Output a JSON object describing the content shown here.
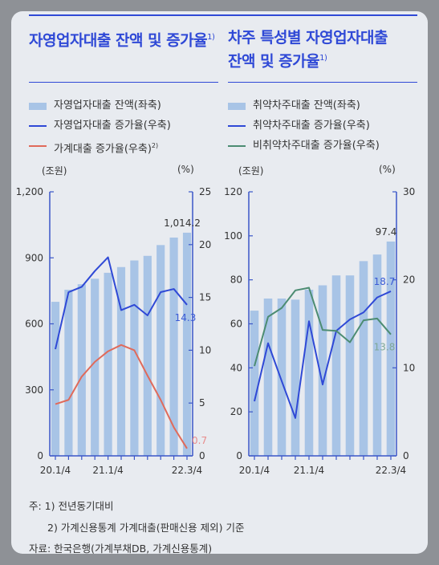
{
  "titles": {
    "left": "자영업자대출 잔액 및 증가율",
    "left_sup": "1)",
    "right_line1": "차주 특성별 자영업자대출",
    "right_line2": "잔액 및 증가율",
    "right_sup": "1)"
  },
  "legend_left": [
    {
      "label": "자영업자대출 잔액(좌축)",
      "kind": "bar",
      "sup": ""
    },
    {
      "label": "자영업자대출 증가율(우축)",
      "kind": "line",
      "sup": ""
    },
    {
      "label": "가계대출 증가율(우축)",
      "kind": "line",
      "sup": "2)"
    }
  ],
  "legend_right": [
    {
      "label": "취약차주대출 잔액(좌축)",
      "kind": "bar",
      "sup": ""
    },
    {
      "label": "취약차주대출 증가율(우축)",
      "kind": "line",
      "sup": ""
    },
    {
      "label": "비취약차주대출 증가율(우축)",
      "kind": "line",
      "sup": ""
    }
  ],
  "units": {
    "left_axis": "(조원)",
    "right_axis": "(%)"
  },
  "colors": {
    "bar": "#a8c4e6",
    "blue": "#2f49d6",
    "red": "#e06a5a",
    "green": "#4c8c72",
    "axis": "#3a56c8"
  },
  "notes": {
    "line1": "주: 1) 전년동기대비",
    "line2": "2) 가계신용통계 가계대출(판매신용 제외) 기준",
    "line3": "자료: 한국은행(가계부채DB, 가계신용통계)"
  },
  "chart_data": [
    {
      "type": "bar",
      "x_tick_labels": [
        "20.1/4",
        "21.1/4",
        "22.3/4"
      ],
      "y_left_ticks": [
        "0",
        "300",
        "600",
        "900",
        "1,200"
      ],
      "y_right_ticks": [
        "0",
        "5",
        "10",
        "15",
        "20",
        "25"
      ],
      "ylim_left": [
        0,
        1200
      ],
      "ylim_right": [
        0,
        25
      ],
      "categories": [
        "20.1/4",
        "20.2/4",
        "20.3/4",
        "20.4/4",
        "21.1/4",
        "21.2/4",
        "21.3/4",
        "21.4/4",
        "22.1/4",
        "22.2/4",
        "22.3/4"
      ],
      "series": [
        {
          "name": "자영업자대출 잔액(좌축)",
          "type": "bar",
          "axis": "left",
          "values": [
            700,
            755,
            780,
            805,
            832,
            858,
            888,
            909,
            958,
            992,
            1014.2
          ]
        },
        {
          "name": "자영업자대출 증가율(우축)",
          "type": "line",
          "axis": "right",
          "values": [
            10.1,
            15.5,
            16.0,
            17.5,
            18.8,
            13.8,
            14.3,
            13.3,
            15.5,
            15.8,
            14.3
          ]
        },
        {
          "name": "가계대출 증가율(우축)",
          "type": "line",
          "axis": "right",
          "values": [
            4.9,
            5.3,
            7.5,
            8.9,
            9.9,
            10.5,
            10.0,
            7.6,
            5.3,
            2.7,
            0.7
          ]
        }
      ],
      "data_labels": [
        {
          "text": "1,014.2",
          "series": 0,
          "index": 10
        },
        {
          "text": "14.3",
          "series": 1,
          "index": 10
        },
        {
          "text": "0.7",
          "series": 2,
          "index": 10
        }
      ]
    },
    {
      "type": "bar",
      "x_tick_labels": [
        "20.1/4",
        "21.1/4",
        "22.3/4"
      ],
      "y_left_ticks": [
        "0",
        "20",
        "40",
        "60",
        "80",
        "100",
        "120"
      ],
      "y_right_ticks": [
        "0",
        "10",
        "20",
        "30"
      ],
      "ylim_left": [
        0,
        120
      ],
      "ylim_right": [
        0,
        30
      ],
      "categories": [
        "20.1/4",
        "20.2/4",
        "20.3/4",
        "20.4/4",
        "21.1/4",
        "21.2/4",
        "21.3/4",
        "21.4/4",
        "22.1/4",
        "22.2/4",
        "22.3/4"
      ],
      "series": [
        {
          "name": "취약차주대출 잔액(좌축)",
          "type": "bar",
          "axis": "left",
          "values": [
            66,
            71.5,
            71.5,
            71,
            75.5,
            77.5,
            82,
            82,
            88.5,
            91.5,
            97.4
          ]
        },
        {
          "name": "취약차주대출 증가율(우축)",
          "type": "line",
          "axis": "right",
          "values": [
            6.2,
            12.8,
            8.5,
            4.3,
            15.3,
            8.1,
            14.2,
            15.5,
            16.3,
            18.0,
            18.7
          ]
        },
        {
          "name": "비취약차주대출 증가율(우축)",
          "type": "line",
          "axis": "right",
          "values": [
            10.2,
            15.8,
            16.8,
            18.8,
            19.1,
            14.3,
            14.2,
            12.9,
            15.4,
            15.6,
            13.8
          ]
        }
      ],
      "data_labels": [
        {
          "text": "97.4",
          "series": 0,
          "index": 10
        },
        {
          "text": "18.7",
          "series": 1,
          "index": 10
        },
        {
          "text": "13.8",
          "series": 2,
          "index": 10
        }
      ]
    }
  ]
}
